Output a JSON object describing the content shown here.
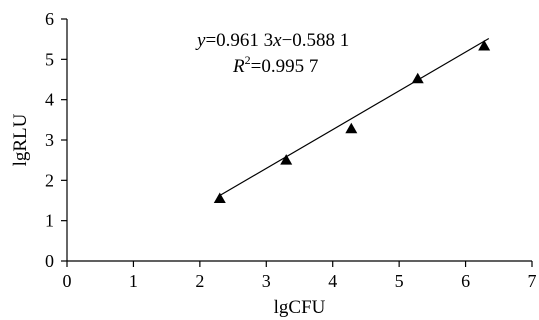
{
  "chart_data": {
    "type": "scatter",
    "title": "",
    "xlabel": "lgCFU",
    "ylabel": "lgRLU",
    "xlim": [
      0,
      7
    ],
    "ylim": [
      0,
      6
    ],
    "xticks": [
      "0",
      "1",
      "2",
      "3",
      "4",
      "5",
      "6",
      "7"
    ],
    "yticks": [
      "0",
      "1",
      "2",
      "3",
      "4",
      "5",
      "6"
    ],
    "grid": false,
    "legend": "none",
    "marker": "triangle",
    "marker_color": "#000000",
    "series": [
      {
        "points": [
          {
            "x": 2.3,
            "y": 1.55
          },
          {
            "x": 3.3,
            "y": 2.5
          },
          {
            "x": 4.28,
            "y": 3.28
          },
          {
            "x": 5.28,
            "y": 4.52
          },
          {
            "x": 6.28,
            "y": 5.33
          }
        ]
      }
    ],
    "trendline": {
      "slope": 0.9613,
      "intercept": -0.5881,
      "x_range": [
        2.3,
        6.35
      ]
    },
    "annotations": {
      "equation_y": "y",
      "equation_rest_1": "=0.961 3",
      "equation_x": "x",
      "equation_rest_2": "−0.588 1",
      "r2_prefix": "R",
      "r2_sup": "2",
      "r2_value": "=0.995 7"
    }
  }
}
